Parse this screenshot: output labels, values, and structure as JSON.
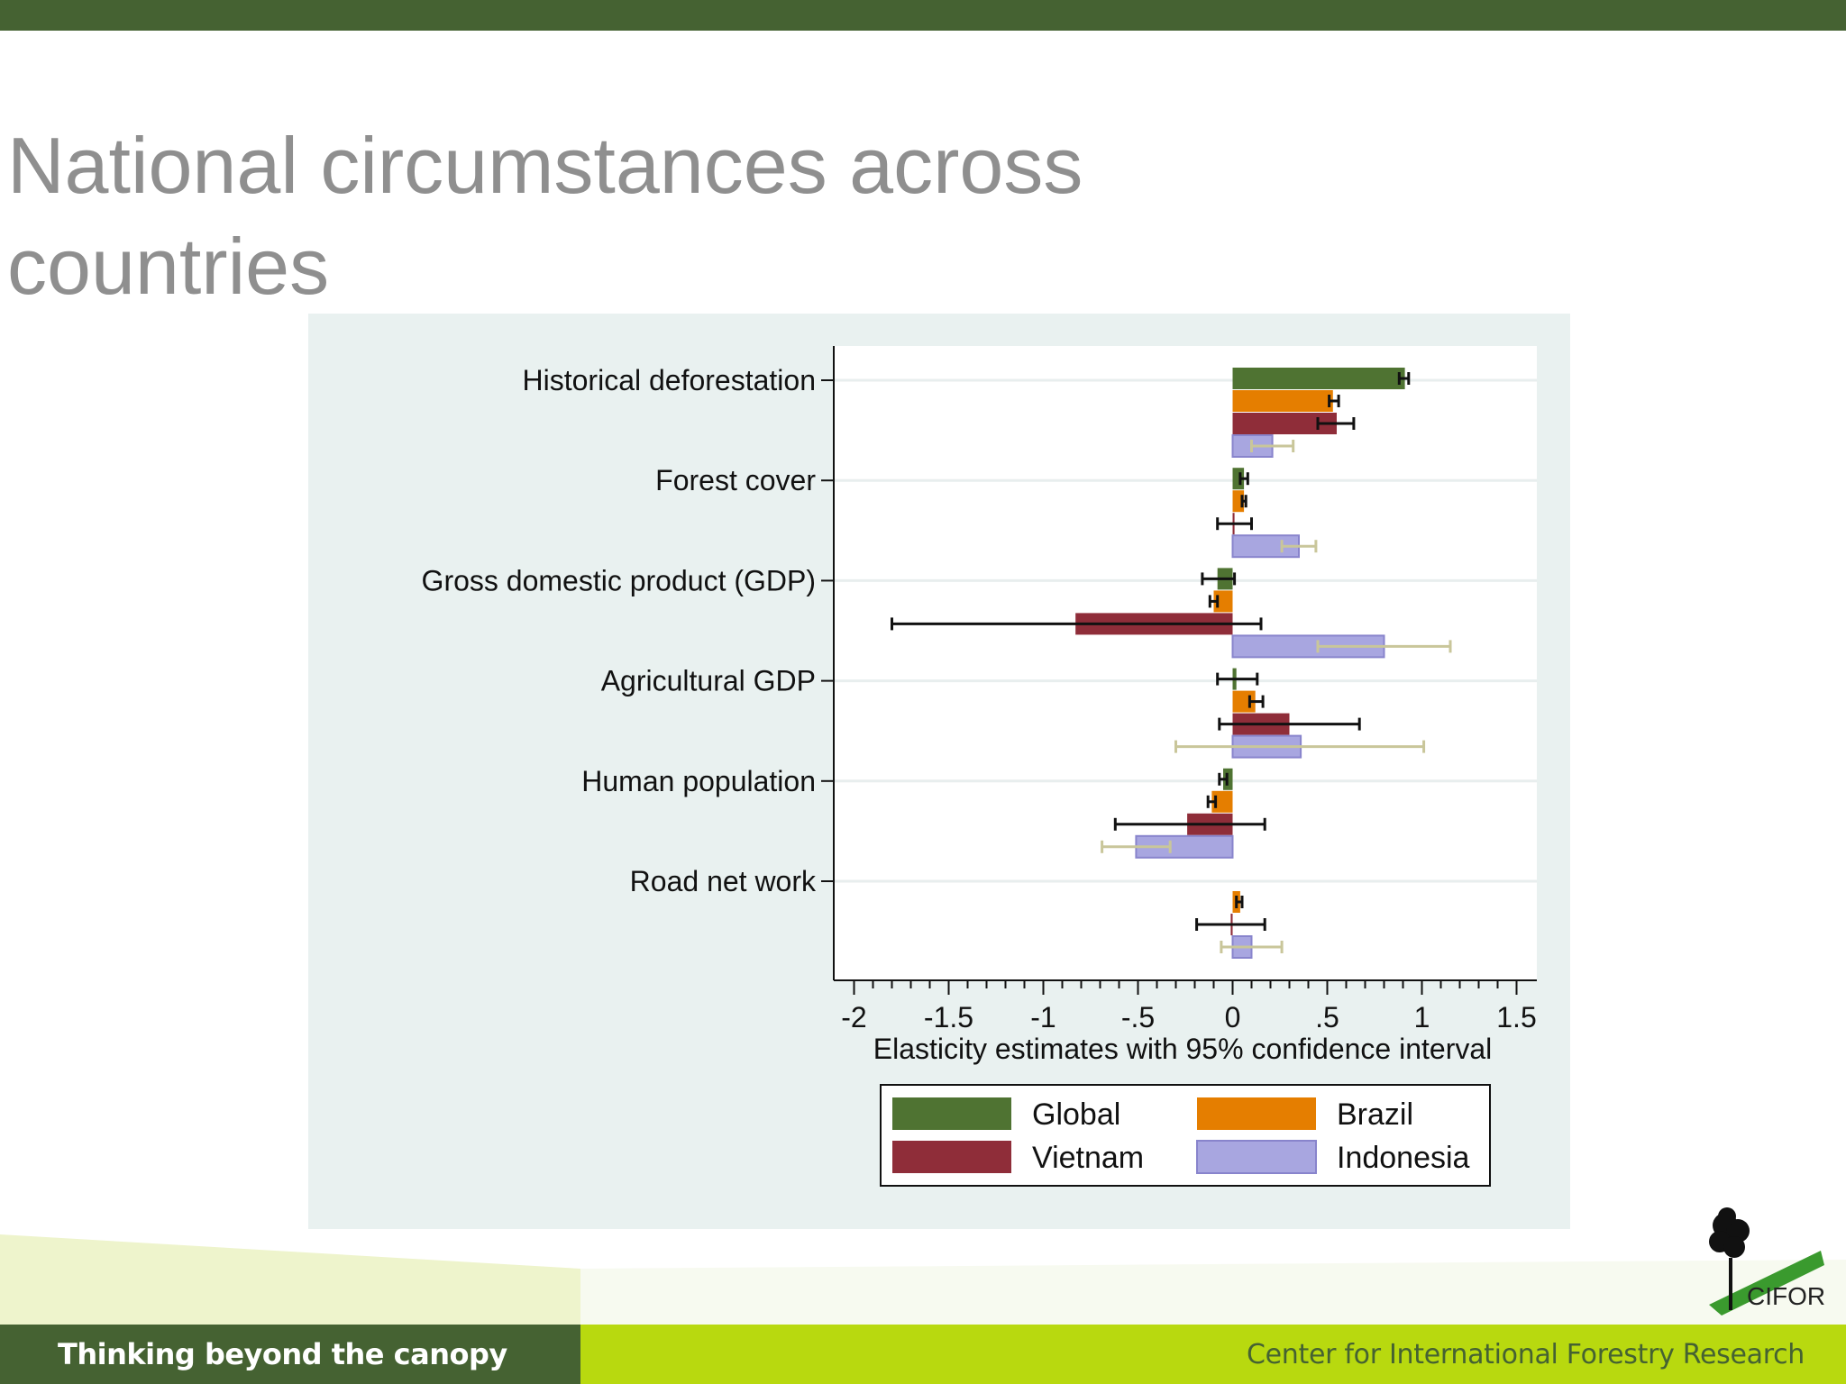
{
  "slide": {
    "title_line1": "National circumstances across",
    "title_line2": "countries",
    "footer_tagline": "Thinking beyond the canopy",
    "footer_org": "Center for International Forestry Research",
    "logo_text": "CIFOR"
  },
  "colors": {
    "top_bar": "#456232",
    "footer_left": "#456232",
    "footer_right": "#b8d90f",
    "title": "#8f8f8f",
    "panel": "#e9f1f0"
  },
  "chart_data": {
    "type": "bar",
    "orientation": "horizontal",
    "title": "",
    "xlabel": "Elasticity estimates with 95% confidence interval",
    "ylabel": "",
    "xlim": [
      -2.1,
      1.6
    ],
    "xticks": [
      {
        "value": -2,
        "label": "-2"
      },
      {
        "value": -1.5,
        "label": "-1.5"
      },
      {
        "value": -1,
        "label": "-1"
      },
      {
        "value": -0.5,
        "label": "-.5"
      },
      {
        "value": 0,
        "label": "0"
      },
      {
        "value": 0.5,
        "label": ".5"
      },
      {
        "value": 1,
        "label": "1"
      },
      {
        "value": 1.5,
        "label": "1.5"
      }
    ],
    "categories": [
      "Historical deforestation",
      "Forest cover",
      "Gross domestic product (GDP)",
      "Agricultural GDP",
      "Human population",
      "Road net work"
    ],
    "series": [
      {
        "name": "Global",
        "color": "#4f7332",
        "errcolor": "#111111",
        "values": [
          0.91,
          0.06,
          -0.08,
          0.02,
          -0.05,
          null
        ],
        "ci_low": [
          0.88,
          0.04,
          -0.16,
          -0.08,
          -0.07,
          null
        ],
        "ci_high": [
          0.93,
          0.08,
          0.01,
          0.13,
          -0.03,
          null
        ]
      },
      {
        "name": "Brazil",
        "color": "#e57e00",
        "errcolor": "#111111",
        "values": [
          0.53,
          0.06,
          -0.1,
          0.12,
          -0.11,
          0.04
        ],
        "ci_low": [
          0.51,
          0.05,
          -0.12,
          0.09,
          -0.13,
          0.02
        ],
        "ci_high": [
          0.56,
          0.07,
          -0.08,
          0.16,
          -0.09,
          0.05
        ]
      },
      {
        "name": "Vietnam",
        "color": "#8f2d39",
        "errcolor": "#111111",
        "values": [
          0.55,
          0.01,
          -0.83,
          0.3,
          -0.24,
          -0.01
        ],
        "ci_low": [
          0.45,
          -0.08,
          -1.8,
          -0.07,
          -0.62,
          -0.19
        ],
        "ci_high": [
          0.64,
          0.1,
          0.15,
          0.67,
          0.17,
          0.17
        ]
      },
      {
        "name": "Indonesia",
        "color": "#a8a6e0",
        "errcolor": "#c9c69a",
        "values": [
          0.21,
          0.35,
          0.8,
          0.36,
          -0.51,
          0.1
        ],
        "ci_low": [
          0.1,
          0.26,
          0.45,
          -0.3,
          -0.69,
          -0.06
        ],
        "ci_high": [
          0.32,
          0.44,
          1.15,
          1.01,
          -0.33,
          0.26
        ]
      }
    ],
    "legend": {
      "position": "bottom",
      "columns": 2
    }
  }
}
